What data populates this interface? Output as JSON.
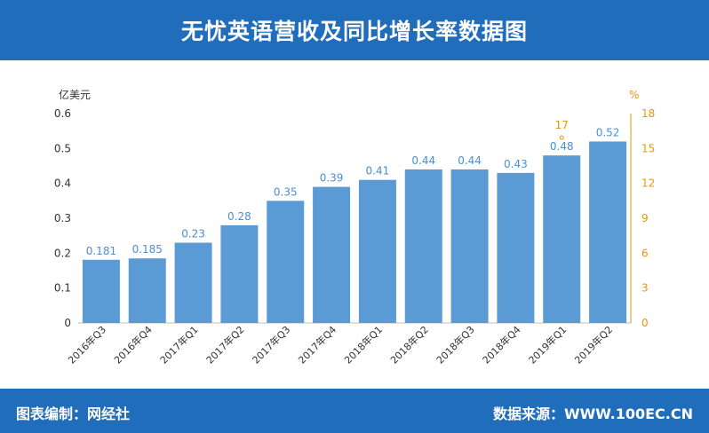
{
  "header": {
    "title": "无忧英语营收及同比增长率数据图"
  },
  "footer": {
    "left_text": "图表编制：网经社",
    "right_text": "数据来源：WWW.100EC.CN"
  },
  "chart_data": {
    "type": "bar",
    "title": "无忧英语营收及同比增长率数据图",
    "categories": [
      "2016年Q3",
      "2016年Q4",
      "2017年Q1",
      "2017年Q2",
      "2017年Q3",
      "2017年Q4",
      "2018年Q1",
      "2018年Q2",
      "2018年Q3",
      "2018年Q4",
      "2019年Q1",
      "2019年Q2"
    ],
    "values": [
      0.181,
      0.185,
      0.23,
      0.28,
      0.35,
      0.39,
      0.41,
      0.44,
      0.44,
      0.43,
      0.48,
      0.52
    ],
    "value_labels": [
      "0.181",
      "0.185",
      "0.23",
      "0.28",
      "0.35",
      "0.39",
      "0.41",
      "0.44",
      "0.44",
      "0.43",
      "0.48",
      "0.52"
    ],
    "ylabel_left": "亿美元",
    "ylabel_right": "%",
    "ylim_left": [
      0,
      0.6
    ],
    "yticks_left": [
      "0",
      "0.1",
      "0.2",
      "0.3",
      "0.4",
      "0.5",
      "0.6"
    ],
    "ylim_right": [
      0,
      18
    ],
    "yticks_right": [
      "0",
      "3",
      "6",
      "9",
      "12",
      "15",
      "18"
    ],
    "growth_annotation": {
      "category": "2019年Q1",
      "text": "17",
      "value": 17
    },
    "grid": false,
    "colors": {
      "bar": "#5b9bd5",
      "right_axis": "#e8950c",
      "header": "#1f6dbb"
    }
  }
}
